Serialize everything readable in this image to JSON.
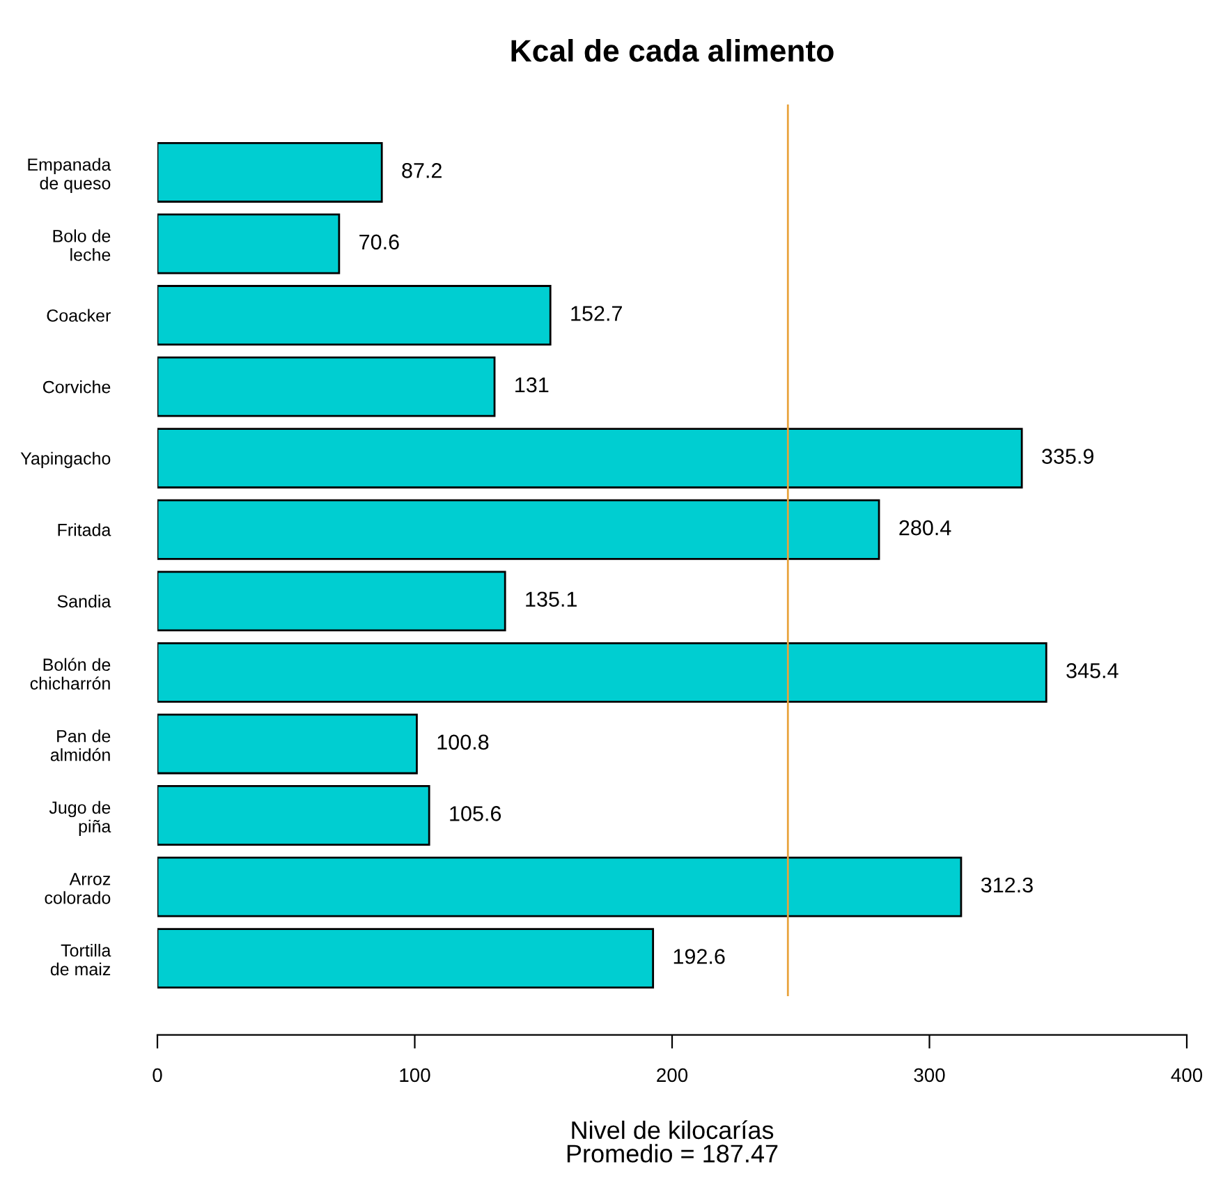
{
  "chart_data": {
    "type": "bar",
    "orientation": "horizontal",
    "title": "Kcal de cada alimento",
    "xlabel": "Nivel de kilocarías\nPromedio = 187.47",
    "categories": [
      "Empanada\nde queso",
      "Bolo de\nleche",
      "Coacker",
      "Corviche",
      "Yapingacho",
      "Fritada",
      "Sandia",
      "Bolón de\nchicharrón",
      "Pan de\nalmidón",
      "Jugo de\npiña",
      "Arroz\ncolorado",
      "Tortilla\nde maiz"
    ],
    "values": [
      87.2,
      70.6,
      152.7,
      131,
      335.9,
      280.4,
      135.1,
      345.4,
      100.8,
      105.6,
      312.3,
      192.6
    ],
    "color": "#00ced1",
    "data_labels": true,
    "xlim": [
      0,
      400
    ],
    "xticks": [
      0,
      100,
      200,
      300,
      400
    ],
    "ref_lines": [
      {
        "axis": "x",
        "value": 245,
        "color": "#e8a33d"
      }
    ],
    "grid": false,
    "legend": false
  }
}
